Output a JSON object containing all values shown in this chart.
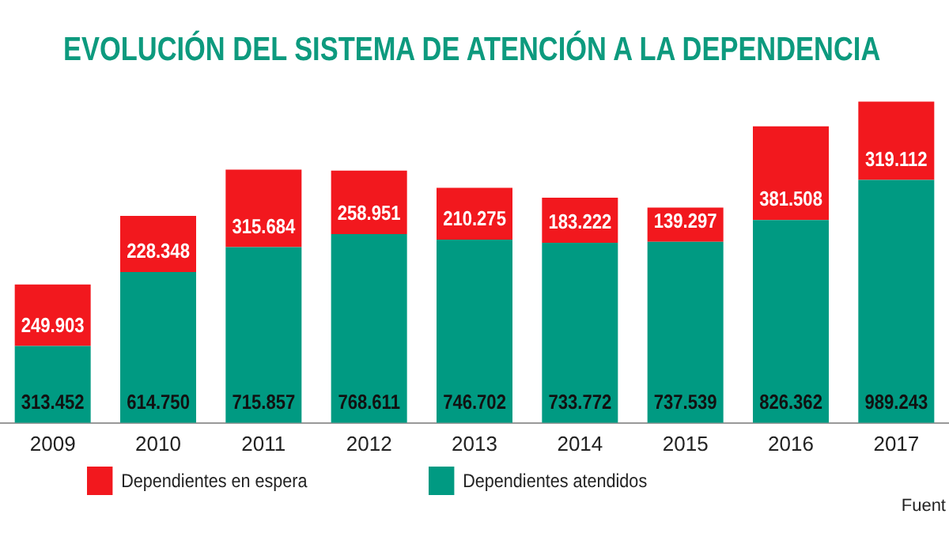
{
  "chart_data": {
    "type": "bar",
    "title": "EVOLUCIÓN DEL SISTEMA DE ATENCIÓN A LA DEPENDENCIA",
    "categories": [
      "2009",
      "2010",
      "2011",
      "2012",
      "2013",
      "2014",
      "2015",
      "2016",
      "2017"
    ],
    "stacked": true,
    "legend": "bottom",
    "grid": false,
    "series": [
      {
        "name": "Dependientes atendidos",
        "color": "#009a82",
        "values": [
          313452,
          614750,
          715857,
          768611,
          746702,
          733772,
          737539,
          826362,
          989243
        ],
        "value_labels": [
          "313.452",
          "614.750",
          "715.857",
          "768.611",
          "746.702",
          "733.772",
          "737.539",
          "826.362",
          "989.243"
        ]
      },
      {
        "name": "Dependientes en espera",
        "color": "#f2181e",
        "values": [
          249903,
          228348,
          315684,
          258951,
          210275,
          183222,
          139297,
          381508,
          319112
        ],
        "value_labels": [
          "249.903",
          "228.348",
          "315.684",
          "258.951",
          "210.275",
          "183.222",
          "139.297",
          "381.508",
          "319.112"
        ]
      }
    ],
    "annotations": [
      "Fuent"
    ]
  }
}
